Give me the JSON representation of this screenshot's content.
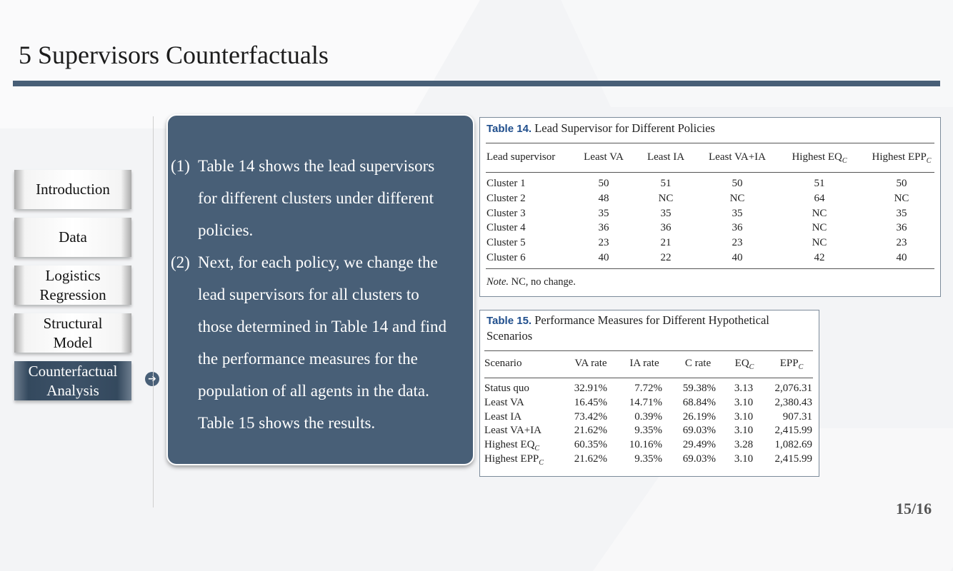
{
  "title": "5 Supervisors Counterfactuals",
  "nav": [
    {
      "label": "Introduction",
      "active": false
    },
    {
      "label": "Data",
      "active": false
    },
    {
      "label": "Logistics Regression",
      "active": false
    },
    {
      "label": "Structural Model",
      "active": false
    },
    {
      "label": "Counterfactual Analysis",
      "active": true
    }
  ],
  "nav_arrow_icon": "circle-arrow-right-icon",
  "points": [
    {
      "num": "(1)",
      "lines": [
        "Table 14 shows the lead supervisors",
        "for different clusters under different",
        "policies."
      ]
    },
    {
      "num": "(2)",
      "lines": [
        "Next, for each policy, we change the",
        "lead supervisors for all clusters to",
        "those determined in Table 14 and find",
        "the performance measures for the",
        "population of all agents in the data.",
        "Table 15 shows the results."
      ]
    }
  ],
  "table14": {
    "label": "Table 14.",
    "caption": "Lead Supervisor for Different Policies",
    "headers": [
      "Lead supervisor",
      "Least VA",
      "Least IA",
      "Least VA+IA",
      "Highest EQ",
      "Highest EPP"
    ],
    "header_subscripts": [
      "",
      "",
      "",
      "",
      "C",
      "C"
    ],
    "rows": [
      [
        "Cluster 1",
        "50",
        "51",
        "50",
        "51",
        "50"
      ],
      [
        "Cluster 2",
        "48",
        "NC",
        "NC",
        "64",
        "NC"
      ],
      [
        "Cluster 3",
        "35",
        "35",
        "35",
        "NC",
        "35"
      ],
      [
        "Cluster 4",
        "36",
        "36",
        "36",
        "NC",
        "36"
      ],
      [
        "Cluster 5",
        "23",
        "21",
        "23",
        "NC",
        "23"
      ],
      [
        "Cluster 6",
        "40",
        "22",
        "40",
        "42",
        "40"
      ]
    ],
    "note_label": "Note.",
    "note": "NC, no change."
  },
  "table15": {
    "label": "Table 15.",
    "caption_line1": "Performance Measures for Different Hypothetical",
    "caption_line2": "Scenarios",
    "headers": [
      "Scenario",
      "VA rate",
      "IA rate",
      "C rate",
      "EQ",
      "EPP"
    ],
    "header_subscripts": [
      "",
      "",
      "",
      "",
      "C",
      "C"
    ],
    "rows": [
      [
        "Status quo",
        "32.91%",
        "7.72%",
        "59.38%",
        "3.13",
        "2,076.31"
      ],
      [
        "Least VA",
        "16.45%",
        "14.71%",
        "68.84%",
        "3.10",
        "2,380.43"
      ],
      [
        "Least IA",
        "73.42%",
        "0.39%",
        "26.19%",
        "3.10",
        "907.31"
      ],
      [
        "Least VA+IA",
        "21.62%",
        "9.35%",
        "69.03%",
        "3.10",
        "2,415.99"
      ],
      [
        "Highest EQ",
        "60.35%",
        "10.16%",
        "29.49%",
        "3.28",
        "1,082.69"
      ],
      [
        "Highest EPP",
        "21.62%",
        "9.35%",
        "69.03%",
        "3.10",
        "2,415.99"
      ]
    ],
    "row_subscripts": [
      "",
      "",
      "",
      "",
      "C",
      "C"
    ]
  },
  "page_number": "15/16"
}
